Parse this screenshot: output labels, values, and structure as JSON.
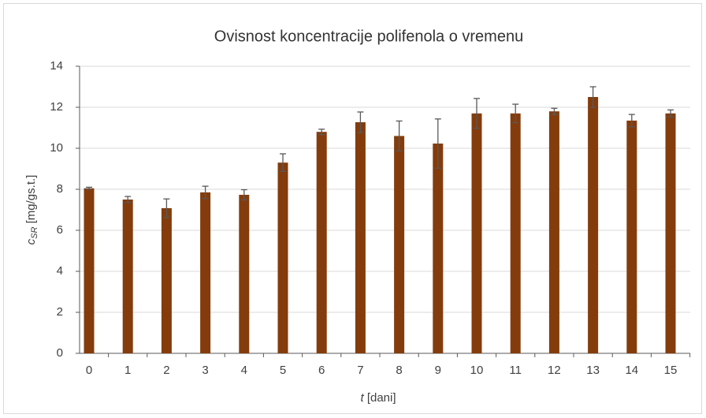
{
  "chart_data": {
    "type": "bar",
    "title": "Ovisnost koncentracije  polifenola o vremenu",
    "x_label": {
      "symbol": "t",
      "unit": "[dani]"
    },
    "y_label": {
      "symbol": "c",
      "subscript": "SR",
      "unit": "[mg/gs.t.]"
    },
    "categories": [
      "0",
      "1",
      "2",
      "3",
      "4",
      "5",
      "6",
      "7",
      "8",
      "9",
      "10",
      "11",
      "12",
      "13",
      "14",
      "15"
    ],
    "values": [
      8.05,
      7.5,
      7.08,
      7.85,
      7.73,
      9.3,
      10.8,
      11.27,
      10.6,
      10.23,
      11.7,
      11.7,
      11.8,
      12.5,
      11.35,
      11.7
    ],
    "errors": [
      0.05,
      0.15,
      0.45,
      0.3,
      0.25,
      0.43,
      0.13,
      0.5,
      0.73,
      1.2,
      0.73,
      0.45,
      0.15,
      0.5,
      0.3,
      0.17
    ],
    "color": "#843c0c",
    "error_color": "#595959",
    "ylim": [
      0,
      14
    ],
    "yticks": [
      0,
      2,
      4,
      6,
      8,
      10,
      12,
      14
    ],
    "grid": true
  }
}
